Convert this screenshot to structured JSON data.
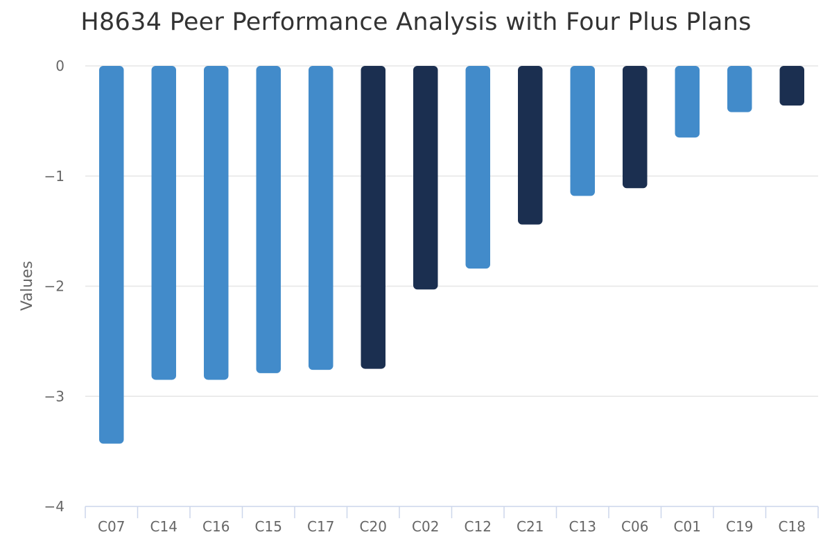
{
  "chart_data": {
    "type": "bar",
    "title": "H8634 Peer Performance Analysis with Four Plus Plans",
    "xlabel": "",
    "ylabel": "Values",
    "ylim": [
      -4,
      0
    ],
    "yticks": [
      0,
      -1,
      -2,
      -3,
      -4
    ],
    "ytick_labels": [
      "0",
      "−1",
      "−2",
      "−3",
      "−4"
    ],
    "grid": true,
    "legend": "none",
    "categories": [
      "C07",
      "C14",
      "C16",
      "C15",
      "C17",
      "C20",
      "C02",
      "C12",
      "C21",
      "C13",
      "C06",
      "C01",
      "C19",
      "C18"
    ],
    "values": [
      -3.43,
      -2.85,
      -2.85,
      -2.79,
      -2.76,
      -2.75,
      -2.03,
      -1.84,
      -1.44,
      -1.18,
      -1.11,
      -0.65,
      -0.42,
      -0.36
    ],
    "bar_colors": [
      "#428bca",
      "#428bca",
      "#428bca",
      "#428bca",
      "#428bca",
      "#1b2f50",
      "#1b2f50",
      "#428bca",
      "#1b2f50",
      "#428bca",
      "#1b2f50",
      "#428bca",
      "#428bca",
      "#1b2f50"
    ],
    "colors": {
      "light_bar": "#428bca",
      "dark_bar": "#1b2f50",
      "grid": "#e6e6e6",
      "axis": "#ccd6eb",
      "text": "#666666",
      "title": "#333333"
    }
  }
}
